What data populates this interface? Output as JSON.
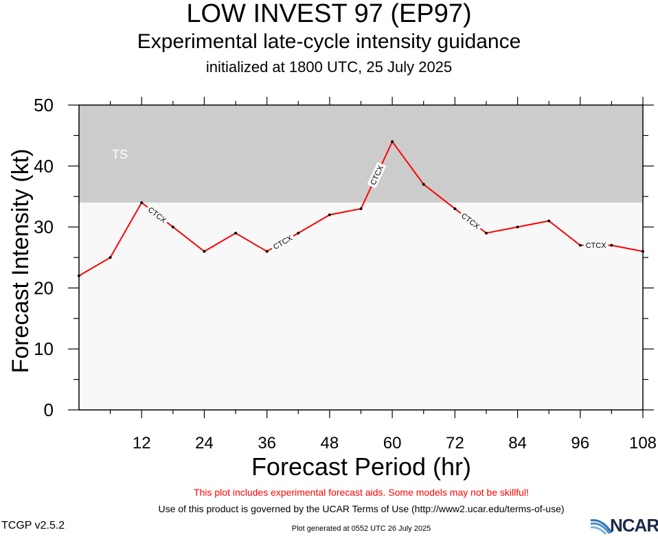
{
  "header": {
    "title": "LOW INVEST 97 (EP97)",
    "subtitle": "Experimental late-cycle intensity guidance",
    "initialized": "initialized at 1800 UTC, 25 July 2025"
  },
  "footer": {
    "warning": "This plot includes experimental forecast aids. Some models may not be skillful!",
    "terms": "Use of this product is governed by the UCAR Terms of Use (http://www2.ucar.edu/terms-of-use)",
    "generated": "Plot generated at 0552 UTC   26 July 2025",
    "version": "TCGP v2.5.2",
    "logo_text": "NCAR"
  },
  "colors": {
    "ts_band": "#cccccc",
    "below_band": "#f8f8f8",
    "series_line": "#ff0000",
    "warning_text": "#ff0000"
  },
  "chart_data": {
    "type": "line",
    "xlabel": "Forecast Period (hr)",
    "ylabel": "Forecast Intensity (kt)",
    "xlim": [
      0,
      108
    ],
    "ylim": [
      0,
      50
    ],
    "x_ticks": [
      12,
      24,
      36,
      48,
      60,
      72,
      84,
      96,
      108
    ],
    "y_ticks": [
      0,
      10,
      20,
      30,
      40,
      50
    ],
    "grid": false,
    "bands": [
      {
        "label": "TS",
        "from": 34,
        "to": 50
      }
    ],
    "series": [
      {
        "name": "CTCX",
        "x": [
          0,
          6,
          12,
          18,
          24,
          30,
          36,
          42,
          48,
          54,
          60,
          66,
          72,
          78,
          84,
          90,
          96,
          102,
          108
        ],
        "values": [
          22,
          25,
          34,
          30,
          26,
          29,
          26,
          29,
          32,
          33,
          44,
          37,
          33,
          29,
          30,
          31,
          27,
          27,
          26
        ]
      }
    ]
  }
}
